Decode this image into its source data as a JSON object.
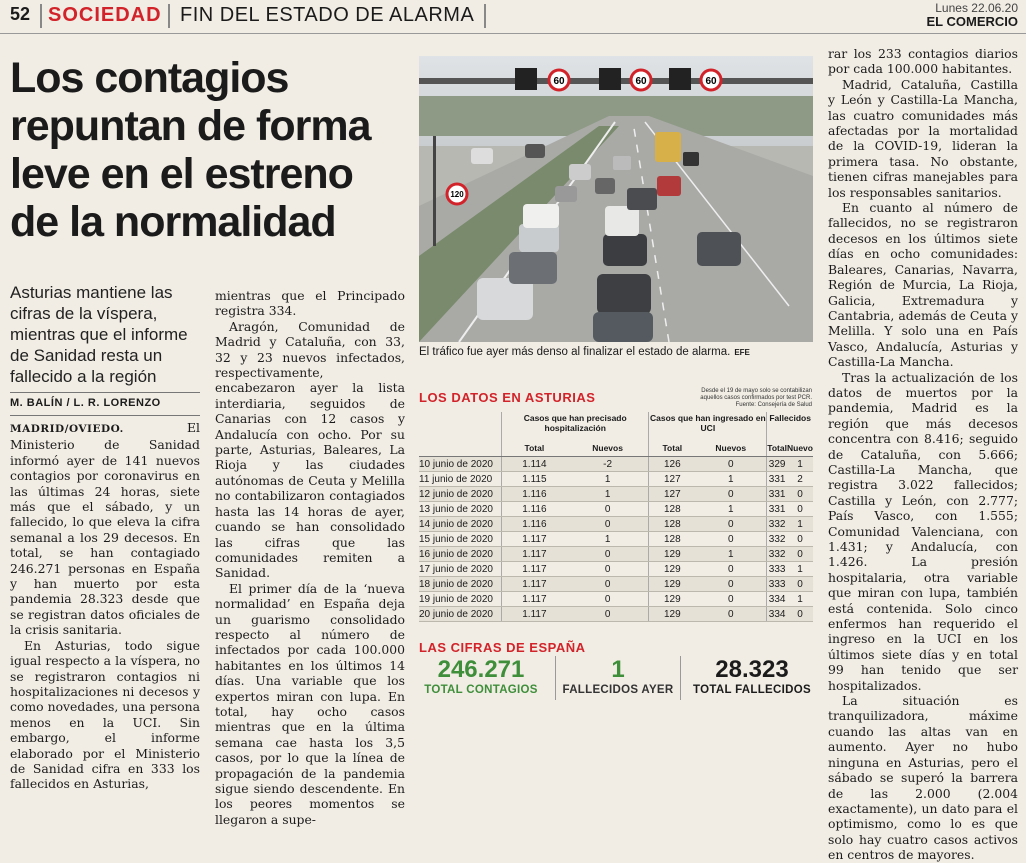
{
  "header": {
    "page_number": "52",
    "section": "SOCIEDAD",
    "topic": "FIN DEL ESTADO DE ALARMA",
    "date": "Lunes 22.06.20",
    "newspaper": "EL COMERCIO"
  },
  "article": {
    "headline": "Los contagios repuntan de forma leve en el estreno de la normalidad",
    "subhead": "Asturias mantiene las cifras de la víspera, mientras que el informe de Sanidad resta un fallecido a la región",
    "byline": "M. BALÍN / L. R. LORENZO",
    "col1": {
      "place": "MADRID/OVIEDO.",
      "p1": " El Ministerio de Sanidad informó ayer de 141 nuevos contagios por coronavirus en las últimas 24 horas, siete más que el sábado, y un fallecido, lo que eleva la cifra semanal a los 29 decesos. En total, se han contagiado 246.271 personas en España y han muerto por esta pandemia 28.323 desde que se registran datos oficiales de la crisis sanitaria.",
      "p2": "En Asturias, todo sigue igual respecto a la víspera, no se registraron contagios ni hospitalizaciones ni decesos y como novedades, una persona menos en la UCI. Sin embargo, el informe elaborado por el Ministerio de Sanidad cifra en 333 los fallecidos en Asturias,"
    },
    "col2": {
      "p1": "mientras que el Principado registra 334.",
      "p2": "Aragón, Comunidad de Madrid y Cataluña, con 33, 32 y 23 nuevos infectados, respectivamente, encabezaron ayer la lista interdiaria, seguidos de Canarias con 12 casos y Andalucía con ocho. Por su parte, Asturias, Baleares, La Rioja y las ciudades autónomas de Ceuta y Melilla no contabilizaron contagiados hasta las 14 horas de ayer, cuando se han consolidado las cifras que las comunidades remiten a Sanidad.",
      "p3": "El primer día de la ‘nueva normalidad’ en España deja un guarismo consolidado respecto al número de infectados por cada 100.000 habitantes en los últimos 14 días. Una variable que los expertos miran con lupa. En total, hay ocho casos mientras que en la última semana cae hasta los 3,5 casos, por lo que la línea de propagación de la pandemia sigue siendo descendente. En los peores momentos se llegaron a supe-"
    },
    "col3": {
      "p1": "rar los 233 contagios diarios por cada 100.000 habitantes.",
      "p2": "Madrid, Cataluña, Castilla y León y Castilla-La Mancha, las cuatro comunidades más afectadas por la mortalidad de la COVID-19, lideran la primera tasa. No obstante, tienen cifras manejables para los responsables sanitarios.",
      "p3": "En cuanto al número de fallecidos, no se registraron decesos en los últimos siete días en ocho comunidades: Baleares, Canarias, Navarra, Región de Murcia, La Rioja, Galicia, Extremadura y Cantabria, además de Ceuta y Melilla. Y solo una en País Vasco, Andalucía, Asturias y Castilla-La Mancha.",
      "p4": "Tras la actualización de los datos de muertos por la pandemia, Madrid es la región que más decesos concentra con 8.416; seguido de Cataluña, con 5.666; Castilla-La Mancha, que registra 3.022 fallecidos; Castilla y León, con 2.777; País Vasco, con 1.555; Comunidad Valenciana, con 1.431; y Andalucía, con 1.426. La presión hospitalaria, otra variable que miran con lupa, también está contenida. Solo cinco enfermos han requerido el ingreso en la UCI en los últimos siete días y en total 99 han tenido que ser hospitalizados.",
      "p5": "La situación es tranquilizadora, máxime cuando las altas van en aumento. Ayer no hubo ninguna en Asturias, pero el sábado se superó la barrera de las 2.000 (2.004 exactamente), un dato para el optimismo, como lo es que solo hay cuatro casos activos en centros de mayores."
    },
    "photo": {
      "caption": "El tráfico fue ayer más denso al finalizar el estado de alarma.",
      "credit": "EFE",
      "sign_60": "60",
      "sign_120": "120"
    }
  },
  "datos": {
    "title": "LOS DATOS EN ASTURIAS",
    "note": "Desde el 19 de mayo solo se contabilizan aquellos casos confirmados por test PCR. Fuente: Consejería de Salud",
    "groups": [
      "Casos que han precisado hospitalización",
      "Casos que han ingresado en UCI",
      "Fallecidos"
    ],
    "subheaders": [
      "Total",
      "Nuevos",
      "Total",
      "Nuevos",
      "Total",
      "Nuevo"
    ],
    "rows": [
      [
        "10 junio de 2020",
        "1.114",
        "-2",
        "126",
        "0",
        "329",
        "1"
      ],
      [
        "11 junio de 2020",
        "1.115",
        "1",
        "127",
        "1",
        "331",
        "2"
      ],
      [
        "12 junio de 2020",
        "1.116",
        "1",
        "127",
        "0",
        "331",
        "0"
      ],
      [
        "13 junio de 2020",
        "1.116",
        "0",
        "128",
        "1",
        "331",
        "0"
      ],
      [
        "14 junio de 2020",
        "1.116",
        "0",
        "128",
        "0",
        "332",
        "1"
      ],
      [
        "15 junio de 2020",
        "1.117",
        "1",
        "128",
        "0",
        "332",
        "0"
      ],
      [
        "16 junio de 2020",
        "1.117",
        "0",
        "129",
        "1",
        "332",
        "0"
      ],
      [
        "17 junio de 2020",
        "1.117",
        "0",
        "129",
        "0",
        "333",
        "1"
      ],
      [
        "18 junio de 2020",
        "1.117",
        "0",
        "129",
        "0",
        "333",
        "0"
      ],
      [
        "19 junio de 2020",
        "1.117",
        "0",
        "129",
        "0",
        "334",
        "1"
      ],
      [
        "20 junio de 2020",
        "1.117",
        "0",
        "129",
        "0",
        "334",
        "0"
      ]
    ]
  },
  "espana": {
    "title": "LAS CIFRAS DE ESPAÑA",
    "stats": [
      {
        "value": "246.271",
        "label": "TOTAL CONTAGIOS"
      },
      {
        "value": "1",
        "label": "FALLECIDOS AYER"
      },
      {
        "value": "28.323",
        "label": "TOTAL FALLECIDOS"
      }
    ]
  },
  "colors": {
    "accent": "#d2232a",
    "green": "#3e8e3a",
    "paper": "#f1ede4"
  }
}
